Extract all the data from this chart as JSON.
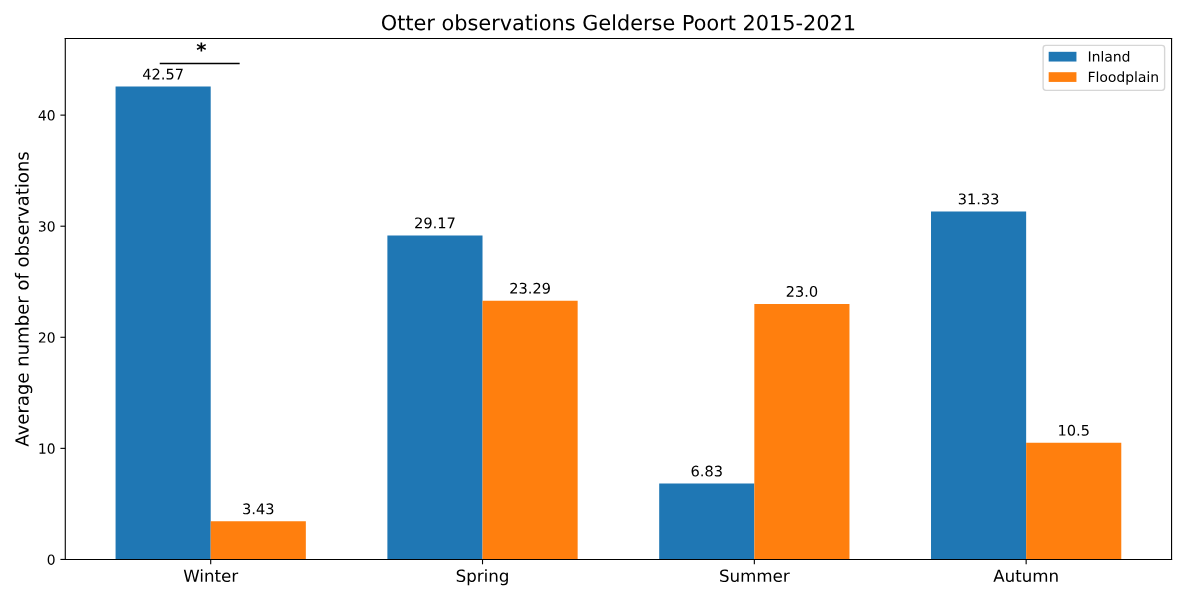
{
  "chart_data": {
    "type": "bar",
    "title": "Otter observations Gelderse Poort 2015-2021",
    "ylabel": "Average number of observations",
    "categories": [
      "Winter",
      "Spring",
      "Summer",
      "Autumn"
    ],
    "series": [
      {
        "name": "Inland",
        "color": "#1f77b4",
        "values": [
          42.57,
          29.17,
          6.83,
          31.33
        ],
        "value_labels": [
          "42.57",
          "29.17",
          "6.83",
          "31.33"
        ]
      },
      {
        "name": "Floodplain",
        "color": "#ff7f0e",
        "values": [
          3.43,
          23.29,
          23.0,
          10.5
        ],
        "value_labels": [
          "3.43",
          "23.29",
          "23.0",
          "10.5"
        ]
      }
    ],
    "ylim": [
      0,
      46.9
    ],
    "yticks": [
      0,
      10,
      20,
      30,
      40
    ],
    "annotations": [
      "*"
    ],
    "legend": "top right",
    "grid": false
  }
}
